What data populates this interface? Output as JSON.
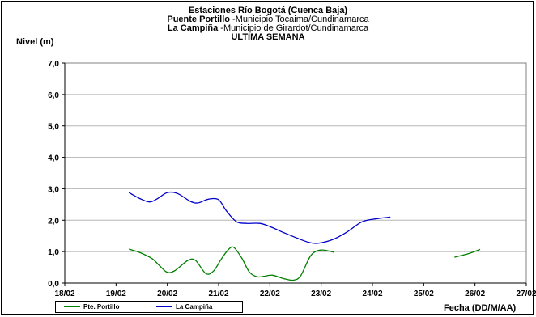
{
  "header": {
    "line1": "Estaciones Río Bogotá (Cuenca Baja)",
    "line2_bold": "Puente Portillo",
    "line2_rest": " -Municipio Tocaima/Cundinamarca",
    "line3_bold": "La Campiña",
    "line3_rest": " -Municipio de Girardot/Cundinamarca",
    "line4": "ULTIMA SEMANA"
  },
  "chart_data": {
    "type": "line",
    "title": "Estaciones Río Bogotá (Cuenca Baja)",
    "subtitle": "ULTIMA SEMANA",
    "xlabel": "Fecha (DD/M/AA)",
    "ylabel": "Nivel (m)",
    "xlim": [
      0,
      9
    ],
    "ylim": [
      0,
      7
    ],
    "x_ticks": [
      "18/02",
      "19/02",
      "20/02",
      "21/02",
      "22/02",
      "23/02",
      "24/02",
      "25/02",
      "26/02",
      "27/02"
    ],
    "y_ticks": [
      "0,0",
      "1,0",
      "2,0",
      "3,0",
      "4,0",
      "5,0",
      "6,0",
      "7,0"
    ],
    "grid": "horizontal",
    "legend_position": "bottom-left",
    "series": [
      {
        "name": "Pte. Portillo",
        "color": "#007f00",
        "segments": [
          [
            [
              1.25,
              1.08
            ],
            [
              1.45,
              0.98
            ],
            [
              1.7,
              0.78
            ],
            [
              1.85,
              0.55
            ],
            [
              2.0,
              0.34
            ],
            [
              2.15,
              0.4
            ],
            [
              2.4,
              0.72
            ],
            [
              2.55,
              0.72
            ],
            [
              2.75,
              0.3
            ],
            [
              2.9,
              0.38
            ],
            [
              3.05,
              0.76
            ],
            [
              3.2,
              1.08
            ],
            [
              3.3,
              1.13
            ],
            [
              3.45,
              0.8
            ],
            [
              3.6,
              0.35
            ],
            [
              3.75,
              0.2
            ],
            [
              3.9,
              0.22
            ],
            [
              4.05,
              0.25
            ],
            [
              4.25,
              0.15
            ],
            [
              4.45,
              0.09
            ],
            [
              4.6,
              0.23
            ],
            [
              4.8,
              0.88
            ],
            [
              5.0,
              1.05
            ],
            [
              5.25,
              0.98
            ]
          ],
          [
            [
              7.6,
              0.82
            ],
            [
              7.9,
              0.95
            ],
            [
              8.1,
              1.07
            ]
          ]
        ]
      },
      {
        "name": "La Campiña",
        "color": "#0000cc",
        "segments": [
          [
            [
              1.25,
              2.88
            ],
            [
              1.45,
              2.7
            ],
            [
              1.65,
              2.58
            ],
            [
              1.8,
              2.68
            ],
            [
              2.0,
              2.88
            ],
            [
              2.2,
              2.85
            ],
            [
              2.45,
              2.6
            ],
            [
              2.6,
              2.55
            ],
            [
              2.8,
              2.67
            ],
            [
              3.0,
              2.65
            ],
            [
              3.15,
              2.3
            ],
            [
              3.35,
              1.95
            ],
            [
              3.55,
              1.9
            ],
            [
              3.8,
              1.9
            ],
            [
              4.0,
              1.8
            ],
            [
              4.25,
              1.62
            ],
            [
              4.5,
              1.45
            ],
            [
              4.75,
              1.3
            ],
            [
              4.95,
              1.27
            ],
            [
              5.25,
              1.4
            ],
            [
              5.5,
              1.62
            ],
            [
              5.8,
              1.95
            ],
            [
              6.1,
              2.05
            ],
            [
              6.35,
              2.1
            ]
          ]
        ]
      }
    ]
  }
}
